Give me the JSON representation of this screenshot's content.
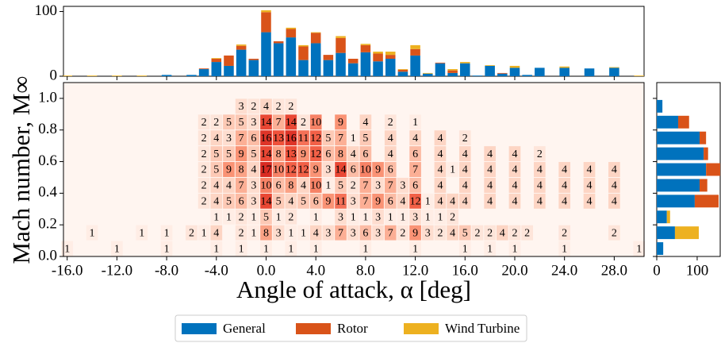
{
  "chart_data": [
    {
      "type": "stacked-bar",
      "x": [
        -16,
        -15,
        -14,
        -13,
        -12,
        -11,
        -10,
        -9,
        -8,
        -7,
        -6,
        -5,
        -4,
        -3,
        -2,
        -1,
        0,
        1,
        2,
        3,
        4,
        5,
        6,
        7,
        8,
        9,
        10,
        11,
        12,
        13,
        14,
        15,
        16,
        17,
        18,
        19,
        20,
        21,
        22,
        23,
        24,
        25,
        26,
        27,
        28,
        29,
        30
      ],
      "series": [
        {
          "name": "General",
          "color": "#0072bd",
          "values": [
            0,
            0,
            0,
            0,
            0,
            0,
            0,
            0,
            2,
            0,
            2,
            11,
            22,
            16,
            41,
            25,
            68,
            51,
            60,
            25,
            51,
            25,
            36,
            20,
            37,
            23,
            27,
            7,
            32,
            4,
            20,
            5,
            20,
            1,
            16,
            4,
            13,
            2,
            13,
            0,
            13,
            0,
            12,
            0,
            13,
            0,
            0
          ]
        },
        {
          "name": "Rotor",
          "color": "#d95319",
          "values": [
            0,
            0,
            0,
            0,
            0,
            0,
            0,
            0,
            0,
            0,
            0,
            1,
            5,
            16,
            6,
            2,
            31,
            3,
            13,
            21,
            16,
            8,
            23,
            7,
            11,
            12,
            6,
            3,
            10,
            0,
            1,
            4,
            0,
            0,
            0,
            1,
            0,
            0,
            0,
            0,
            0,
            0,
            0,
            0,
            0,
            0,
            0
          ]
        },
        {
          "name": "Wind Turbine",
          "color": "#edb120",
          "values": [
            1,
            0,
            1,
            0,
            1,
            0,
            1,
            0,
            0,
            0,
            0,
            0,
            1,
            0,
            2,
            0,
            3,
            0,
            2,
            2,
            1,
            0,
            3,
            0,
            2,
            3,
            5,
            1,
            6,
            1,
            0,
            2,
            2,
            0,
            1,
            0,
            3,
            0,
            0,
            0,
            2,
            0,
            0,
            0,
            1,
            0,
            1
          ]
        }
      ],
      "xlim": [
        -16.3,
        30.4
      ],
      "ylim": [
        0,
        108
      ],
      "yticks": [
        0,
        100
      ]
    },
    {
      "type": "heatmap",
      "xlabel": "Angle of attack, α [deg]",
      "ylabel": "Mach number, M∞",
      "colormap": [
        "#fff5f0",
        "#fdd3c1",
        "#fb9b7d",
        "#f0533c",
        "#d92a22"
      ],
      "rows": [
        {
          "y": 0.95,
          "x": [
            -2,
            -1,
            0,
            1,
            2
          ],
          "values": [
            3,
            2,
            4,
            2,
            2
          ]
        },
        {
          "y": 0.85,
          "x": [
            -5,
            -4,
            -3,
            -2,
            -1,
            0,
            1,
            2,
            3,
            4,
            6,
            8,
            10,
            12
          ],
          "values": [
            2,
            2,
            5,
            5,
            3,
            14,
            7,
            14,
            2,
            10,
            9,
            4,
            2,
            1
          ]
        },
        {
          "y": 0.75,
          "x": [
            -5,
            -4,
            -3,
            -2,
            -1,
            0,
            1,
            2,
            3,
            4,
            5,
            6,
            7,
            8,
            10,
            12,
            14,
            16
          ],
          "values": [
            2,
            4,
            3,
            7,
            6,
            16,
            13,
            16,
            11,
            12,
            5,
            7,
            1,
            5,
            4,
            4,
            4,
            2
          ]
        },
        {
          "y": 0.65,
          "x": [
            -5,
            -4,
            -3,
            -2,
            -1,
            0,
            1,
            2,
            3,
            4,
            5,
            6,
            7,
            8,
            10,
            12,
            14,
            16,
            18,
            20,
            22
          ],
          "values": [
            2,
            5,
            5,
            9,
            5,
            14,
            8,
            13,
            9,
            12,
            6,
            8,
            4,
            6,
            4,
            6,
            4,
            4,
            4,
            4,
            2
          ]
        },
        {
          "y": 0.55,
          "x": [
            -5,
            -4,
            -3,
            -2,
            -1,
            0,
            1,
            2,
            3,
            4,
            5,
            6,
            7,
            8,
            9,
            10,
            12,
            14,
            15,
            16,
            18,
            20,
            22,
            24,
            26,
            28
          ],
          "values": [
            2,
            5,
            9,
            8,
            4,
            17,
            10,
            12,
            12,
            9,
            3,
            14,
            6,
            10,
            9,
            6,
            7,
            4,
            1,
            4,
            4,
            4,
            4,
            4,
            4,
            4
          ]
        },
        {
          "y": 0.45,
          "x": [
            -5,
            -4,
            -3,
            -2,
            -1,
            0,
            1,
            2,
            3,
            4,
            5,
            6,
            7,
            8,
            9,
            10,
            11,
            12,
            14,
            16,
            18,
            20,
            22,
            24,
            26,
            28
          ],
          "values": [
            2,
            4,
            4,
            7,
            3,
            10,
            6,
            8,
            4,
            10,
            1,
            5,
            2,
            7,
            3,
            7,
            3,
            6,
            4,
            4,
            4,
            4,
            4,
            4,
            4,
            4
          ]
        },
        {
          "y": 0.35,
          "x": [
            -5,
            -4,
            -3,
            -2,
            -1,
            0,
            1,
            2,
            3,
            4,
            5,
            6,
            7,
            8,
            9,
            10,
            11,
            12,
            13,
            14,
            15,
            16,
            18,
            20,
            22,
            24,
            26,
            28
          ],
          "values": [
            2,
            4,
            5,
            6,
            3,
            14,
            5,
            4,
            5,
            6,
            9,
            11,
            3,
            7,
            9,
            6,
            4,
            12,
            1,
            4,
            4,
            4,
            4,
            4,
            4,
            4,
            4,
            4
          ]
        },
        {
          "y": 0.25,
          "x": [
            -4,
            -3,
            -2,
            -1,
            0,
            1,
            2,
            4,
            6,
            7,
            8,
            9,
            10,
            11,
            12,
            13,
            14,
            15
          ],
          "values": [
            1,
            1,
            2,
            1,
            5,
            1,
            2,
            1,
            3,
            1,
            1,
            3,
            1,
            1,
            3,
            1,
            1,
            2
          ]
        },
        {
          "y": 0.15,
          "x": [
            -14,
            -10,
            -8,
            -6,
            -5,
            -4,
            -2,
            -1,
            0,
            1,
            2,
            3,
            4,
            5,
            6,
            7,
            8,
            9,
            10,
            11,
            12,
            13,
            14,
            15,
            16,
            17,
            18,
            19,
            20,
            21,
            24,
            28
          ],
          "values": [
            1,
            1,
            1,
            2,
            1,
            4,
            2,
            1,
            8,
            3,
            1,
            1,
            4,
            3,
            7,
            3,
            6,
            3,
            7,
            2,
            9,
            3,
            2,
            4,
            5,
            2,
            2,
            4,
            2,
            2,
            2,
            2
          ]
        },
        {
          "y": 0.05,
          "x": [
            -16,
            -12,
            -8,
            -4,
            -2,
            0,
            2,
            4,
            8,
            12,
            16,
            18,
            20,
            24,
            30
          ],
          "values": [
            1,
            1,
            1,
            1,
            1,
            1,
            1,
            1,
            1,
            1,
            1,
            1,
            1,
            1,
            1
          ]
        }
      ],
      "xlim": [
        -16.3,
        30.4
      ],
      "ylim": [
        0,
        1.1
      ],
      "xticks": [
        {
          "value": -16,
          "label": "-16.0"
        },
        {
          "value": -12,
          "label": "-12.0"
        },
        {
          "value": -8,
          "label": "-8.0"
        },
        {
          "value": -4,
          "label": "-4.0"
        },
        {
          "value": 0,
          "label": "0.0"
        },
        {
          "value": 4,
          "label": "4.0"
        },
        {
          "value": 8,
          "label": "8.0"
        },
        {
          "value": 12,
          "label": "12.0"
        },
        {
          "value": 16,
          "label": "16.0"
        },
        {
          "value": 20,
          "label": "20.0"
        },
        {
          "value": 24,
          "label": "24.0"
        },
        {
          "value": 28,
          "label": "28.0"
        }
      ],
      "yticks": [
        {
          "value": 0,
          "label": "0.0"
        },
        0.2,
        0.4,
        0.6,
        0.8,
        {
          "value": 1,
          "label": "1.0"
        }
      ]
    },
    {
      "type": "stacked-barh",
      "y": [
        0.05,
        0.15,
        0.25,
        0.35,
        0.45,
        0.55,
        0.65,
        0.75,
        0.85,
        0.95
      ],
      "series": [
        {
          "name": "General",
          "color": "#0072bd",
          "values": [
            16,
            45,
            25,
            94,
            106,
            122,
            116,
            106,
            53,
            14
          ]
        },
        {
          "name": "Rotor",
          "color": "#d95319",
          "values": [
            0,
            0,
            0,
            59,
            19,
            35,
            11,
            16,
            27,
            0
          ]
        },
        {
          "name": "Wind Turbine",
          "color": "#edb120",
          "values": [
            0,
            59,
            8,
            0,
            0,
            0,
            0,
            0,
            0,
            0
          ]
        }
      ],
      "xlim": [
        0,
        157
      ],
      "xticks": [
        0,
        100
      ]
    }
  ]
}
